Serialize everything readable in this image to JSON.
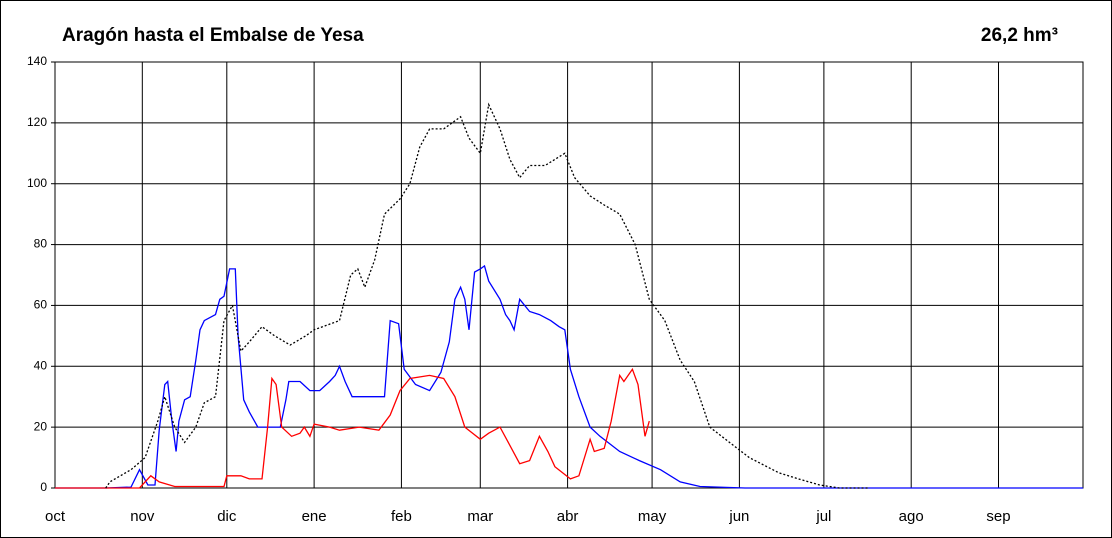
{
  "chart_data": {
    "type": "line",
    "title": "Aragón hasta el  Embalse de Yesa",
    "subtitle": "26,2 hm³",
    "xlim": [
      0,
      365
    ],
    "xticks": [
      {
        "value": 0,
        "label": "oct"
      },
      {
        "value": 31,
        "label": "nov"
      },
      {
        "value": 61,
        "label": "dic"
      },
      {
        "value": 92,
        "label": "ene"
      },
      {
        "value": 123,
        "label": "feb"
      },
      {
        "value": 151,
        "label": "mar"
      },
      {
        "value": 182,
        "label": "abr"
      },
      {
        "value": 212,
        "label": "may"
      },
      {
        "value": 243,
        "label": "jun"
      },
      {
        "value": 273,
        "label": "jul"
      },
      {
        "value": 304,
        "label": "ago"
      },
      {
        "value": 335,
        "label": "sep"
      }
    ],
    "ylim": [
      0,
      140
    ],
    "yticks": [
      0,
      20,
      40,
      60,
      80,
      100,
      120,
      140
    ],
    "grid": true,
    "series": [
      {
        "color": "#0000ff",
        "style": "solid",
        "x": [
          0,
          18,
          27,
          30,
          33,
          35.5,
          37,
          39,
          40,
          41.5,
          43,
          44,
          46,
          48,
          50,
          51.5,
          53,
          57,
          58.5,
          60,
          62,
          64,
          65,
          67,
          69,
          72,
          80,
          82,
          83,
          87,
          90.5,
          94,
          97.5,
          99.5,
          101,
          103,
          105.5,
          117,
          119,
          122,
          124,
          128,
          133,
          137,
          140,
          142,
          144,
          145.5,
          147,
          149,
          151,
          152.5,
          154,
          158,
          160,
          161.5,
          163,
          165,
          168.5,
          172,
          176,
          179,
          181,
          183,
          186,
          190,
          193.5,
          200.5,
          207.5,
          215,
          222,
          229,
          245,
          365
        ],
        "values": [
          0,
          0,
          0.3,
          6,
          1,
          1,
          19,
          34,
          35,
          22,
          12,
          22,
          29,
          30,
          42,
          52,
          55,
          57,
          62,
          63,
          72,
          72,
          50,
          29,
          25,
          20,
          20,
          29,
          35,
          35,
          32,
          32,
          35,
          37,
          40,
          35,
          30,
          30,
          55,
          54,
          39,
          34,
          32,
          38,
          48,
          62,
          66,
          62,
          52,
          71,
          72,
          73,
          68,
          62,
          57,
          55,
          52,
          62,
          58,
          57,
          55,
          53,
          52,
          39,
          30,
          20,
          17,
          12,
          9,
          6,
          2,
          0.5,
          0,
          0
        ]
      },
      {
        "color": "#ff0000",
        "style": "solid",
        "x": [
          0,
          30,
          34,
          37,
          42.5,
          60,
          61,
          66,
          69,
          73.5,
          75.5,
          77,
          78.5,
          80.5,
          84,
          87,
          88.5,
          90.5,
          92,
          97.5,
          101,
          108,
          115,
          119,
          122.5,
          126,
          133,
          138,
          142,
          145.5,
          151,
          154,
          158,
          161.5,
          165,
          168.5,
          172,
          175,
          177.5,
          183,
          186,
          190,
          191.5,
          195,
          197.5,
          200.5,
          202,
          205,
          207,
          209.5,
          211
        ],
        "values": [
          0,
          0,
          4,
          2,
          0.5,
          0.5,
          4,
          4,
          3,
          3,
          20,
          36,
          34,
          20,
          17,
          18,
          20,
          17,
          21,
          20,
          19,
          20,
          19,
          24,
          32,
          36,
          37,
          36,
          30,
          20,
          16,
          18,
          20,
          14,
          8,
          9,
          17,
          12,
          7,
          3,
          4,
          16,
          12,
          13,
          22,
          37,
          35,
          39,
          34,
          17,
          22
        ]
      },
      {
        "color": "#000000",
        "style": "dotted",
        "x": [
          18,
          19.5,
          27,
          32,
          36.5,
          39,
          42.5,
          46,
          50,
          53,
          57,
          60,
          63,
          66,
          69,
          73.5,
          78,
          83.5,
          89,
          92,
          101,
          105,
          107.5,
          110,
          113.5,
          117,
          122.5,
          126,
          129.5,
          133,
          138,
          144,
          147,
          151,
          154,
          158,
          161.5,
          165,
          168.5,
          174,
          177.5,
          181,
          184.5,
          190,
          195,
          200.5,
          206,
          211,
          216.5,
          222,
          227,
          232.5,
          239.5,
          246.5,
          257,
          264,
          271.5,
          278.5,
          289
        ],
        "values": [
          0,
          2,
          6,
          10,
          22,
          30,
          20,
          15,
          20,
          28,
          30,
          55,
          60,
          45,
          48,
          53,
          50,
          47,
          50,
          52,
          55,
          70,
          72,
          66,
          75,
          90,
          95,
          100,
          112,
          118,
          118,
          122,
          115,
          110,
          126,
          118,
          108,
          102,
          106,
          106,
          108,
          110,
          102,
          96,
          93,
          90,
          80,
          62,
          55,
          42,
          35,
          20,
          15,
          10,
          5,
          3,
          1,
          0,
          0
        ]
      }
    ]
  }
}
